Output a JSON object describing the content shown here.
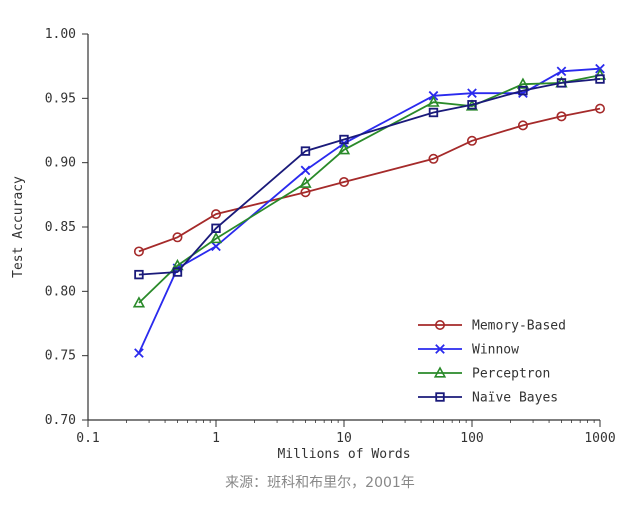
{
  "chart_data": {
    "type": "line",
    "title": "",
    "xlabel": "Millions of Words",
    "ylabel": "Test Accuracy",
    "xscale": "log",
    "xlim": [
      0.1,
      1000
    ],
    "ylim": [
      0.7,
      1.0
    ],
    "xticks": [
      0.1,
      1,
      10,
      100,
      1000
    ],
    "xtick_labels": [
      "0.1",
      "1",
      "10",
      "100",
      "1000"
    ],
    "yticks": [
      0.7,
      0.75,
      0.8,
      0.85,
      0.9,
      0.95,
      1.0
    ],
    "ytick_labels": [
      "0.70",
      "0.75",
      "0.80",
      "0.85",
      "0.90",
      "0.95",
      "1.00"
    ],
    "grid": false,
    "legend_position": "bottom-right",
    "x": [
      0.25,
      0.5,
      1,
      5,
      10,
      50,
      100,
      250,
      500,
      1000
    ],
    "series": [
      {
        "name": "Memory-Based",
        "color": "#a52a2a",
        "marker": "circle",
        "values": [
          0.831,
          0.842,
          0.86,
          0.877,
          0.885,
          0.903,
          0.917,
          0.929,
          0.936,
          0.942
        ]
      },
      {
        "name": "Winnow",
        "color": "#2a2aee",
        "marker": "x",
        "values": [
          0.752,
          0.818,
          0.835,
          0.894,
          0.915,
          0.952,
          0.954,
          0.954,
          0.971,
          0.973
        ]
      },
      {
        "name": "Perceptron",
        "color": "#2a8a2a",
        "marker": "triangle",
        "values": [
          0.791,
          0.82,
          0.841,
          0.884,
          0.91,
          0.947,
          0.944,
          0.961,
          0.962,
          0.968
        ]
      },
      {
        "name": "Naïve Bayes",
        "color": "#1a1a7a",
        "marker": "square",
        "values": [
          0.813,
          0.815,
          0.849,
          0.909,
          0.918,
          0.939,
          0.945,
          0.956,
          0.962,
          0.965
        ]
      }
    ]
  },
  "caption": "来源：班科和布里尔，2001年"
}
